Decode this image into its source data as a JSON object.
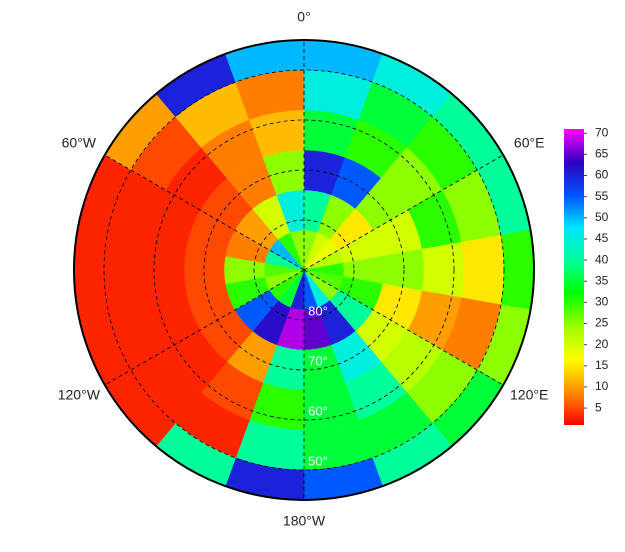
{
  "chart_data": {
    "type": "polar_heatmap",
    "lat_edges": [
      90,
      82,
      74,
      66,
      58,
      50,
      44
    ],
    "lon_edges": [
      0,
      20,
      40,
      60,
      80,
      100,
      120,
      140,
      160,
      180,
      200,
      220,
      240,
      260,
      280,
      300,
      320,
      340,
      360
    ],
    "values": [
      [
        25,
        20,
        18,
        22,
        30,
        28,
        25,
        45,
        55,
        60,
        35,
        30,
        25,
        28,
        40,
        50,
        30,
        25
      ],
      [
        40,
        25,
        15,
        20,
        25,
        30,
        40,
        60,
        65,
        68,
        62,
        55,
        30,
        25,
        8,
        10,
        20,
        45
      ],
      [
        60,
        55,
        25,
        20,
        25,
        15,
        20,
        45,
        35,
        40,
        10,
        5,
        5,
        5,
        5,
        5,
        8,
        25
      ],
      [
        35,
        30,
        25,
        30,
        20,
        10,
        22,
        40,
        35,
        30,
        5,
        3,
        3,
        3,
        3,
        3,
        8,
        12
      ],
      [
        45,
        35,
        30,
        25,
        15,
        8,
        25,
        35,
        35,
        40,
        3,
        3,
        3,
        3,
        3,
        5,
        12,
        8
      ],
      [
        50,
        45,
        40,
        40,
        30,
        25,
        35,
        40,
        55,
        60,
        40,
        3,
        3,
        3,
        3,
        10,
        60,
        50
      ]
    ],
    "colormap": [
      "#ff0000",
      "#ff8c00",
      "#ffff00",
      "#9aff00",
      "#00ff00",
      "#00ff99",
      "#00e5ff",
      "#0050ff",
      "#3000c0",
      "#ff00ff"
    ],
    "clim": [
      1,
      71
    ],
    "colorbar_ticks": [
      5,
      10,
      15,
      20,
      25,
      30,
      35,
      40,
      45,
      50,
      55,
      60,
      65,
      70
    ],
    "lat_labels": [
      {
        "value": 80,
        "label": "80°"
      },
      {
        "value": 70,
        "label": "70°"
      },
      {
        "value": 60,
        "label": "60°"
      },
      {
        "value": 50,
        "label": "50°"
      }
    ],
    "lon_labels": [
      {
        "value": 0,
        "label": "0°"
      },
      {
        "value": 60,
        "label": "60°E"
      },
      {
        "value": 120,
        "label": "120°E"
      },
      {
        "value": 180,
        "label": "180°W"
      },
      {
        "value": -120,
        "label": "120°W"
      },
      {
        "value": -60,
        "label": "60°W"
      }
    ]
  }
}
